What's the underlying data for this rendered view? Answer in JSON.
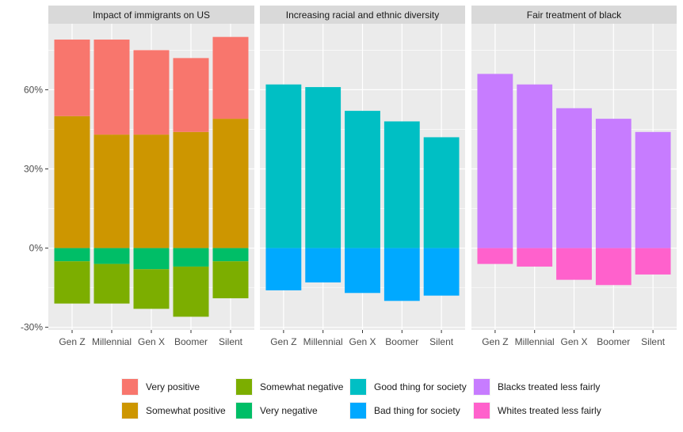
{
  "chart_data": {
    "type": "bar",
    "stacked": true,
    "diverging": true,
    "categories": [
      "Gen Z",
      "Millennial",
      "Gen X",
      "Boomer",
      "Silent"
    ],
    "y_axis": {
      "ticks": [
        -30,
        0,
        30,
        60
      ],
      "tick_labels": [
        "-30%",
        "0%",
        "30%",
        "60%"
      ],
      "ylim": [
        -31,
        85
      ],
      "grid": true
    },
    "panels": [
      {
        "title": "Impact of immigrants on US",
        "positive_series": [
          {
            "name": "Somewhat positive",
            "color": "#CD9600",
            "values": [
              50,
              43,
              43,
              44,
              49
            ]
          },
          {
            "name": "Very positive",
            "color": "#F8766D",
            "values": [
              29,
              36,
              32,
              28,
              31
            ]
          }
        ],
        "negative_series": [
          {
            "name": "Very negative",
            "color": "#00BE67",
            "values": [
              5,
              6,
              8,
              7,
              5
            ]
          },
          {
            "name": "Somewhat negative",
            "color": "#7CAE00",
            "values": [
              16,
              15,
              15,
              19,
              14
            ]
          }
        ]
      },
      {
        "title": "Increasing racial and ethnic diversity",
        "positive_series": [
          {
            "name": "Good thing for society",
            "color": "#00BFC4",
            "values": [
              62,
              61,
              52,
              48,
              42
            ]
          }
        ],
        "negative_series": [
          {
            "name": "Bad thing for society",
            "color": "#00A9FF",
            "values": [
              16,
              13,
              17,
              20,
              18
            ]
          }
        ]
      },
      {
        "title": "Fair treatment of black",
        "positive_series": [
          {
            "name": "Blacks treated less fairly",
            "color": "#C77CFF",
            "values": [
              66,
              62,
              53,
              49,
              44
            ]
          }
        ],
        "negative_series": [
          {
            "name": "Whites treated less fairly",
            "color": "#FF61CC",
            "values": [
              6,
              7,
              12,
              14,
              10
            ]
          }
        ]
      }
    ],
    "legend": {
      "position": "bottom",
      "items": [
        {
          "label": "Very positive",
          "color": "#F8766D"
        },
        {
          "label": "Somewhat positive",
          "color": "#CD9600"
        },
        {
          "label": "Somewhat negative",
          "color": "#7CAE00"
        },
        {
          "label": "Very negative",
          "color": "#00BE67"
        },
        {
          "label": "Good thing for society",
          "color": "#00BFC4"
        },
        {
          "label": "Bad thing for society",
          "color": "#00A9FF"
        },
        {
          "label": "Blacks treated less fairly",
          "color": "#C77CFF"
        },
        {
          "label": "Whites treated less fairly",
          "color": "#FF61CC"
        }
      ]
    },
    "theme": {
      "panel_bg": "#EBEBEB",
      "strip_bg": "#D9D9D9",
      "grid_color": "#FFFFFF"
    }
  }
}
